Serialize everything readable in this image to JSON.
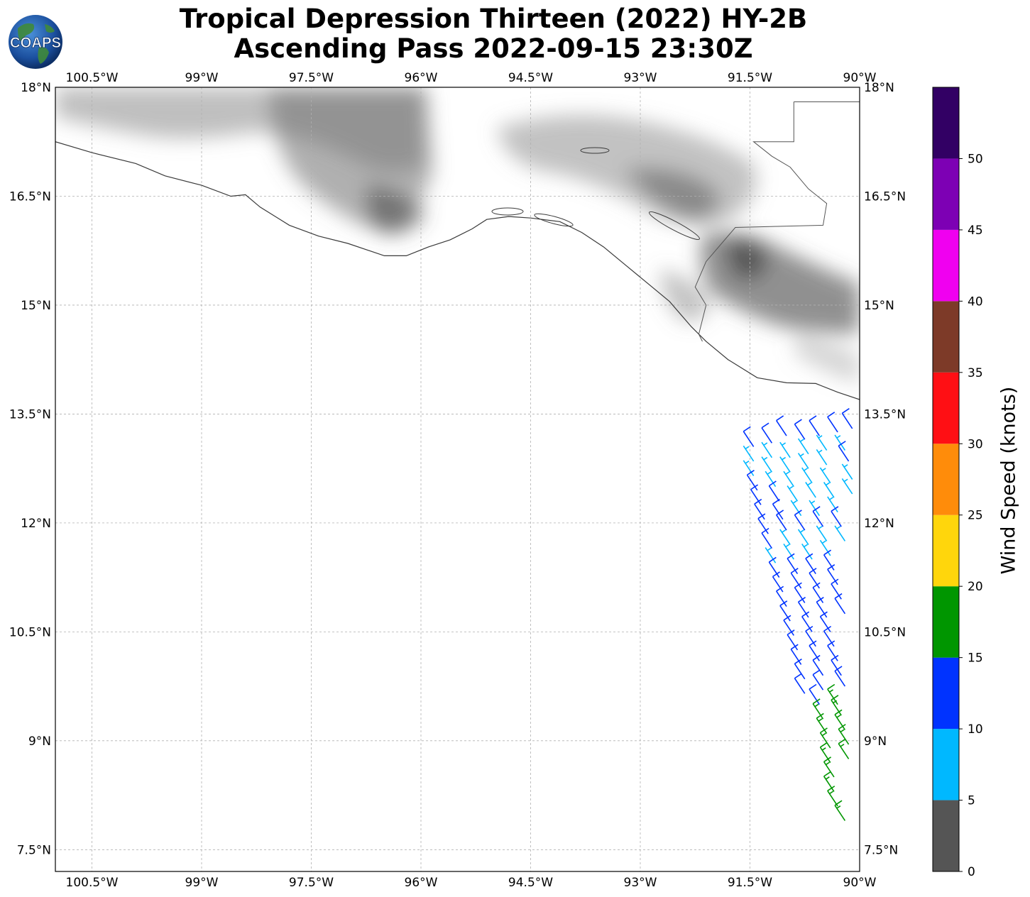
{
  "title": {
    "line1": "Tropical Depression Thirteen (2022) HY-2B",
    "line2": "Ascending Pass 2022-09-15 23:30Z"
  },
  "logo": {
    "text": "COAPS",
    "icon": "globe-icon"
  },
  "map": {
    "lon_range": [
      -101,
      -90
    ],
    "lat_range": [
      7.2,
      18
    ],
    "lon_ticks": [
      {
        "value": -100.5,
        "label": "100.5°W"
      },
      {
        "value": -99,
        "label": "99°W"
      },
      {
        "value": -97.5,
        "label": "97.5°W"
      },
      {
        "value": -96,
        "label": "96°W"
      },
      {
        "value": -94.5,
        "label": "94.5°W"
      },
      {
        "value": -93,
        "label": "93°W"
      },
      {
        "value": -91.5,
        "label": "91.5°W"
      },
      {
        "value": -90,
        "label": "90°W"
      }
    ],
    "lat_ticks": [
      {
        "value": 18,
        "label": "18°N"
      },
      {
        "value": 16.5,
        "label": "16.5°N"
      },
      {
        "value": 15,
        "label": "15°N"
      },
      {
        "value": 13.5,
        "label": "13.5°N"
      },
      {
        "value": 12,
        "label": "12°N"
      },
      {
        "value": 10.5,
        "label": "10.5°N"
      },
      {
        "value": 9,
        "label": "9°N"
      },
      {
        "value": 7.5,
        "label": "7.5°N"
      }
    ]
  },
  "colorbar": {
    "label": "Wind Speed (knots)",
    "max": 55,
    "bins": [
      {
        "from": 0,
        "to": 5,
        "color": "#555555"
      },
      {
        "from": 5,
        "to": 10,
        "color": "#00b8ff"
      },
      {
        "from": 10,
        "to": 15,
        "color": "#0033ff"
      },
      {
        "from": 15,
        "to": 20,
        "color": "#009600"
      },
      {
        "from": 20,
        "to": 25,
        "color": "#ffd60c"
      },
      {
        "from": 25,
        "to": 30,
        "color": "#ff8c0a"
      },
      {
        "from": 30,
        "to": 35,
        "color": "#ff0f14"
      },
      {
        "from": 35,
        "to": 40,
        "color": "#7d3a28"
      },
      {
        "from": 40,
        "to": 45,
        "color": "#f000f0"
      },
      {
        "from": 45,
        "to": 50,
        "color": "#7d00b4"
      },
      {
        "from": 50,
        "to": 55,
        "color": "#320064"
      }
    ],
    "ticks": [
      0,
      5,
      10,
      15,
      20,
      25,
      30,
      35,
      40,
      45,
      50
    ]
  },
  "coast": [
    [
      -101,
      17.25
    ],
    [
      -100.5,
      17.1
    ],
    [
      -99.9,
      16.95
    ],
    [
      -99.5,
      16.78
    ],
    [
      -99.0,
      16.65
    ],
    [
      -98.6,
      16.5
    ],
    [
      -98.4,
      16.52
    ],
    [
      -98.2,
      16.35
    ],
    [
      -97.8,
      16.1
    ],
    [
      -97.4,
      15.95
    ],
    [
      -97.0,
      15.85
    ],
    [
      -96.5,
      15.68
    ],
    [
      -96.2,
      15.68
    ],
    [
      -95.9,
      15.8
    ],
    [
      -95.6,
      15.9
    ],
    [
      -95.3,
      16.05
    ],
    [
      -95.1,
      16.18
    ],
    [
      -94.8,
      16.22
    ],
    [
      -94.5,
      16.2
    ],
    [
      -94.1,
      16.15
    ],
    [
      -93.8,
      16.0
    ],
    [
      -93.5,
      15.8
    ],
    [
      -93.2,
      15.55
    ],
    [
      -92.9,
      15.3
    ],
    [
      -92.6,
      15.05
    ],
    [
      -92.3,
      14.7
    ],
    [
      -92.1,
      14.5
    ],
    [
      -91.8,
      14.25
    ],
    [
      -91.4,
      14.0
    ],
    [
      -91.0,
      13.93
    ],
    [
      -90.6,
      13.92
    ],
    [
      -90.3,
      13.8
    ],
    [
      -90.0,
      13.7
    ]
  ],
  "borders": [
    [
      [
        -90.9,
        17.8
      ],
      [
        -90.9,
        17.25
      ],
      [
        -91.45,
        17.25
      ],
      [
        -91.2,
        17.05
      ],
      [
        -90.95,
        16.9
      ],
      [
        -90.7,
        16.6
      ],
      [
        -90.45,
        16.4
      ],
      [
        -90.5,
        16.1
      ],
      [
        -91.7,
        16.07
      ],
      [
        -92.1,
        15.6
      ],
      [
        -92.25,
        15.25
      ],
      [
        -92.1,
        15.0
      ],
      [
        -92.2,
        14.6
      ],
      [
        -92.15,
        14.5
      ]
    ],
    [
      [
        -90.9,
        17.8
      ],
      [
        -90.0,
        17.8
      ]
    ]
  ],
  "wind_barbs": [
    {
      "lon": -91.45,
      "lat": 13.05,
      "speed": 12
    },
    {
      "lon": -91.2,
      "lat": 13.1,
      "speed": 11
    },
    {
      "lon": -91.0,
      "lat": 13.2,
      "speed": 12
    },
    {
      "lon": -90.75,
      "lat": 13.15,
      "speed": 12
    },
    {
      "lon": -90.55,
      "lat": 13.2,
      "speed": 12
    },
    {
      "lon": -90.3,
      "lat": 13.25,
      "speed": 12
    },
    {
      "lon": -90.1,
      "lat": 13.3,
      "speed": 11
    },
    {
      "lon": -91.45,
      "lat": 12.85,
      "speed": 8
    },
    {
      "lon": -91.2,
      "lat": 12.9,
      "speed": 8
    },
    {
      "lon": -90.95,
      "lat": 12.9,
      "speed": 8
    },
    {
      "lon": -90.7,
      "lat": 12.95,
      "speed": 9
    },
    {
      "lon": -90.45,
      "lat": 13.0,
      "speed": 8
    },
    {
      "lon": -90.2,
      "lat": 13.0,
      "speed": 9
    },
    {
      "lon": -91.45,
      "lat": 12.65,
      "speed": 9
    },
    {
      "lon": -91.2,
      "lat": 12.7,
      "speed": 8
    },
    {
      "lon": -90.95,
      "lat": 12.7,
      "speed": 8
    },
    {
      "lon": -90.7,
      "lat": 12.75,
      "speed": 8
    },
    {
      "lon": -90.45,
      "lat": 12.8,
      "speed": 8
    },
    {
      "lon": -90.15,
      "lat": 12.85,
      "speed": 11
    },
    {
      "lon": -91.4,
      "lat": 12.45,
      "speed": 11
    },
    {
      "lon": -91.15,
      "lat": 12.5,
      "speed": 8
    },
    {
      "lon": -90.9,
      "lat": 12.5,
      "speed": 8
    },
    {
      "lon": -90.65,
      "lat": 12.55,
      "speed": 8
    },
    {
      "lon": -90.4,
      "lat": 12.55,
      "speed": 8
    },
    {
      "lon": -90.1,
      "lat": 12.6,
      "speed": 9
    },
    {
      "lon": -91.35,
      "lat": 12.25,
      "speed": 12
    },
    {
      "lon": -91.1,
      "lat": 12.3,
      "speed": 11
    },
    {
      "lon": -90.85,
      "lat": 12.3,
      "speed": 8
    },
    {
      "lon": -90.6,
      "lat": 12.35,
      "speed": 8
    },
    {
      "lon": -90.35,
      "lat": 12.35,
      "speed": 8
    },
    {
      "lon": -90.1,
      "lat": 12.4,
      "speed": 8
    },
    {
      "lon": -91.3,
      "lat": 12.05,
      "speed": 12
    },
    {
      "lon": -91.05,
      "lat": 12.05,
      "speed": 12
    },
    {
      "lon": -90.8,
      "lat": 12.1,
      "speed": 9
    },
    {
      "lon": -90.55,
      "lat": 12.1,
      "speed": 8
    },
    {
      "lon": -90.3,
      "lat": 12.15,
      "speed": 8
    },
    {
      "lon": -91.25,
      "lat": 11.85,
      "speed": 12
    },
    {
      "lon": -91.0,
      "lat": 11.9,
      "speed": 12
    },
    {
      "lon": -90.75,
      "lat": 11.9,
      "speed": 11
    },
    {
      "lon": -90.5,
      "lat": 11.95,
      "speed": 11
    },
    {
      "lon": -90.25,
      "lat": 11.95,
      "speed": 11
    },
    {
      "lon": -91.2,
      "lat": 11.65,
      "speed": 12
    },
    {
      "lon": -90.95,
      "lat": 11.7,
      "speed": 9
    },
    {
      "lon": -90.7,
      "lat": 11.7,
      "speed": 8
    },
    {
      "lon": -90.45,
      "lat": 11.75,
      "speed": 8
    },
    {
      "lon": -90.2,
      "lat": 11.75,
      "speed": 9
    },
    {
      "lon": -91.15,
      "lat": 11.45,
      "speed": 9
    },
    {
      "lon": -90.9,
      "lat": 11.5,
      "speed": 8
    },
    {
      "lon": -90.65,
      "lat": 11.5,
      "speed": 8
    },
    {
      "lon": -90.4,
      "lat": 11.55,
      "speed": 9
    },
    {
      "lon": -91.1,
      "lat": 11.25,
      "speed": 12
    },
    {
      "lon": -90.85,
      "lat": 11.3,
      "speed": 12
    },
    {
      "lon": -90.6,
      "lat": 11.3,
      "speed": 12
    },
    {
      "lon": -90.35,
      "lat": 11.35,
      "speed": 12
    },
    {
      "lon": -91.05,
      "lat": 11.05,
      "speed": 12
    },
    {
      "lon": -90.8,
      "lat": 11.1,
      "speed": 12
    },
    {
      "lon": -90.55,
      "lat": 11.1,
      "speed": 12
    },
    {
      "lon": -90.3,
      "lat": 11.15,
      "speed": 12
    },
    {
      "lon": -91.0,
      "lat": 10.85,
      "speed": 12
    },
    {
      "lon": -90.75,
      "lat": 10.9,
      "speed": 12
    },
    {
      "lon": -90.5,
      "lat": 10.9,
      "speed": 12
    },
    {
      "lon": -90.25,
      "lat": 10.95,
      "speed": 12
    },
    {
      "lon": -90.95,
      "lat": 10.65,
      "speed": 12
    },
    {
      "lon": -90.7,
      "lat": 10.7,
      "speed": 12
    },
    {
      "lon": -90.45,
      "lat": 10.7,
      "speed": 12
    },
    {
      "lon": -90.2,
      "lat": 10.75,
      "speed": 12
    },
    {
      "lon": -90.9,
      "lat": 10.45,
      "speed": 12
    },
    {
      "lon": -90.65,
      "lat": 10.5,
      "speed": 12
    },
    {
      "lon": -90.4,
      "lat": 10.5,
      "speed": 12
    },
    {
      "lon": -90.85,
      "lat": 10.25,
      "speed": 12
    },
    {
      "lon": -90.6,
      "lat": 10.3,
      "speed": 12
    },
    {
      "lon": -90.35,
      "lat": 10.3,
      "speed": 12
    },
    {
      "lon": -90.8,
      "lat": 10.05,
      "speed": 12
    },
    {
      "lon": -90.55,
      "lat": 10.1,
      "speed": 12
    },
    {
      "lon": -90.3,
      "lat": 10.1,
      "speed": 12
    },
    {
      "lon": -90.75,
      "lat": 9.85,
      "speed": 12
    },
    {
      "lon": -90.5,
      "lat": 9.9,
      "speed": 12
    },
    {
      "lon": -90.25,
      "lat": 9.9,
      "speed": 12
    },
    {
      "lon": -90.75,
      "lat": 9.65,
      "speed": 12
    },
    {
      "lon": -90.5,
      "lat": 9.7,
      "speed": 12
    },
    {
      "lon": -90.2,
      "lat": 9.75,
      "speed": 12
    },
    {
      "lon": -90.55,
      "lat": 9.5,
      "speed": 12
    },
    {
      "lon": -90.3,
      "lat": 9.5,
      "speed": 17
    },
    {
      "lon": -90.5,
      "lat": 9.3,
      "speed": 17
    },
    {
      "lon": -90.25,
      "lat": 9.35,
      "speed": 17
    },
    {
      "lon": -90.45,
      "lat": 9.1,
      "speed": 17
    },
    {
      "lon": -90.2,
      "lat": 9.15,
      "speed": 17
    },
    {
      "lon": -90.4,
      "lat": 8.9,
      "speed": 17
    },
    {
      "lon": -90.15,
      "lat": 8.95,
      "speed": 17
    },
    {
      "lon": -90.4,
      "lat": 8.7,
      "speed": 17
    },
    {
      "lon": -90.15,
      "lat": 8.75,
      "speed": 17
    },
    {
      "lon": -90.35,
      "lat": 8.5,
      "speed": 17
    },
    {
      "lon": -90.35,
      "lat": 8.3,
      "speed": 17
    },
    {
      "lon": -90.3,
      "lat": 8.1,
      "speed": 17
    },
    {
      "lon": -90.2,
      "lat": 7.9,
      "speed": 17
    }
  ]
}
